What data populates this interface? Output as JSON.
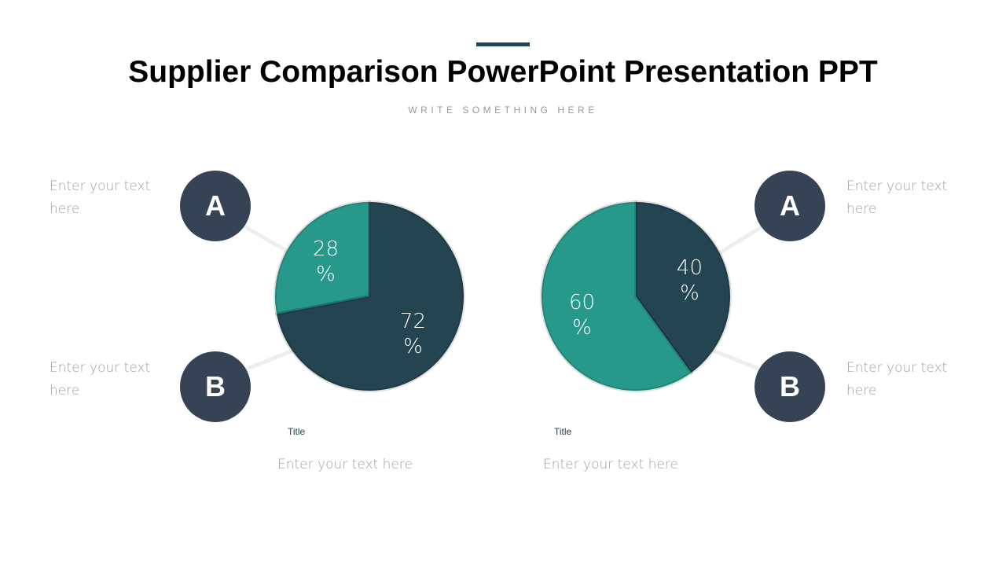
{
  "header": {
    "title": "Supplier Comparison PowerPoint Presentation PPT",
    "subtitle": "WRITE SOMETHING HERE"
  },
  "placeholder": "Enter your text here",
  "labels": {
    "a": "A",
    "b": "B"
  },
  "colors": {
    "dark": "#234450",
    "teal": "#26998a",
    "circle": "#364355"
  },
  "chart_data": [
    {
      "type": "pie",
      "title": "Title",
      "caption": "Enter your text here",
      "slices": [
        {
          "label": "A",
          "value": 28,
          "text": "28 %",
          "color": "#26998a"
        },
        {
          "label": "B",
          "value": 72,
          "text": "72 %",
          "color": "#234450"
        }
      ]
    },
    {
      "type": "pie",
      "title": "Title",
      "caption": "Enter your text here",
      "slices": [
        {
          "label": "A",
          "value": 40,
          "text": "40 %",
          "color": "#234450"
        },
        {
          "label": "B",
          "value": 60,
          "text": "60 %",
          "color": "#26998a"
        }
      ]
    }
  ]
}
